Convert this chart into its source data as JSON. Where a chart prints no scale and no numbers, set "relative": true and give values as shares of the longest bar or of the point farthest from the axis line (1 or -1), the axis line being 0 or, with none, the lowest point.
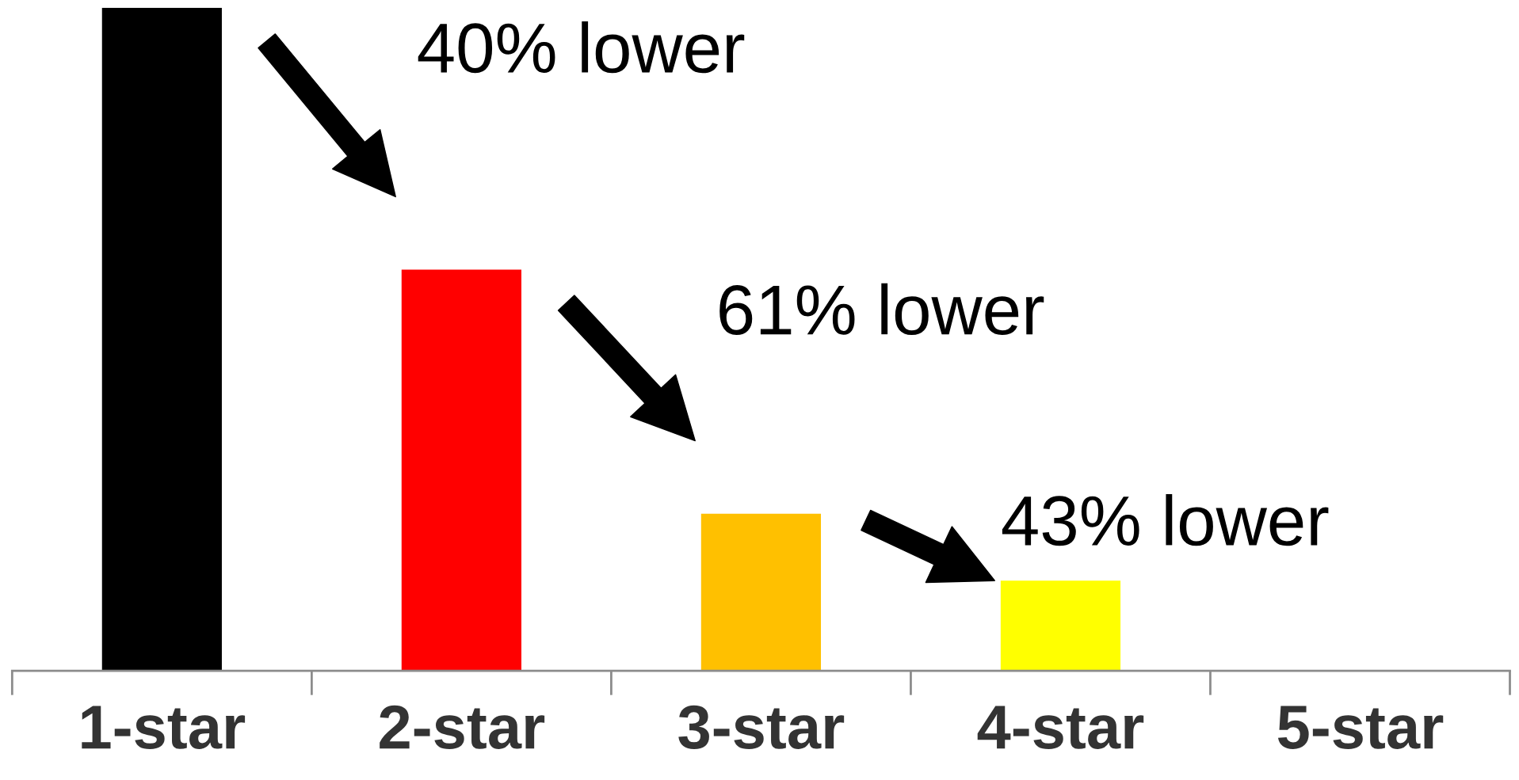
{
  "chart_data": {
    "type": "bar",
    "relative": true,
    "categories": [
      "1-star",
      "2-star",
      "3-star",
      "4-star",
      "5-star"
    ],
    "values": [
      1,
      0.605,
      0.237,
      0.136,
      0
    ],
    "colors": [
      "#000000",
      "#ff0000",
      "#ffc000",
      "#ffff00",
      null
    ],
    "annotations": [
      "40% lower",
      "61% lower",
      "43% lower"
    ],
    "grid": false,
    "legend": false
  }
}
